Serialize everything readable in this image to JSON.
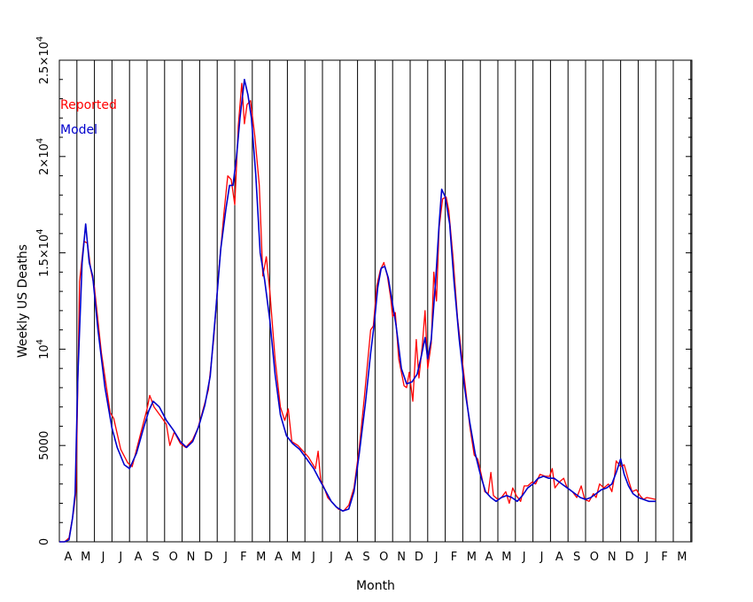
{
  "chart_data": {
    "type": "line",
    "xlabel": "Month",
    "ylabel": "Weekly US Deaths",
    "ylim": [
      0,
      25000
    ],
    "yticks": [
      {
        "value": 0,
        "label": "0"
      },
      {
        "value": 5000,
        "label": "5000"
      },
      {
        "value": 10000,
        "label": "10",
        "sup": "4"
      },
      {
        "value": 15000,
        "label": "1.5×10",
        "sup": "4"
      },
      {
        "value": 20000,
        "label": "2×10",
        "sup": "4"
      },
      {
        "value": 25000,
        "label": "2.5×10",
        "sup": "4"
      }
    ],
    "month_labels": [
      "A",
      "M",
      "J",
      "J",
      "A",
      "S",
      "O",
      "N",
      "D",
      "J",
      "F",
      "M",
      "A",
      "M",
      "J",
      "J",
      "A",
      "S",
      "O",
      "N",
      "D",
      "J",
      "F",
      "M",
      "A",
      "M",
      "J",
      "J",
      "A",
      "S",
      "O",
      "N",
      "D",
      "J",
      "F",
      "M"
    ],
    "xlim": [
      0,
      36
    ],
    "grid": "vertical lines at month boundaries",
    "legend_position": "top-left",
    "series": [
      {
        "name": "Reported",
        "color": "#ff0000",
        "points": [
          [
            0,
            0
          ],
          [
            0.3,
            0
          ],
          [
            0.55,
            200
          ],
          [
            0.8,
            1500
          ],
          [
            0.95,
            2600
          ],
          [
            1.15,
            13500
          ],
          [
            1.4,
            15600
          ],
          [
            1.6,
            15500
          ],
          [
            1.8,
            14100
          ],
          [
            2.0,
            13200
          ],
          [
            2.4,
            9800
          ],
          [
            2.9,
            6700
          ],
          [
            3.1,
            6400
          ],
          [
            3.5,
            4800
          ],
          [
            3.9,
            4100
          ],
          [
            4.15,
            3900
          ],
          [
            4.6,
            5500
          ],
          [
            5.0,
            6900
          ],
          [
            5.15,
            7600
          ],
          [
            5.4,
            7000
          ],
          [
            5.8,
            6500
          ],
          [
            6.1,
            6100
          ],
          [
            6.3,
            5000
          ],
          [
            6.55,
            5700
          ],
          [
            6.9,
            5100
          ],
          [
            7.2,
            4900
          ],
          [
            7.6,
            5300
          ],
          [
            7.9,
            5900
          ],
          [
            8.2,
            6900
          ],
          [
            8.5,
            7900
          ],
          [
            8.8,
            10500
          ],
          [
            9.1,
            14200
          ],
          [
            9.4,
            17200
          ],
          [
            9.6,
            19000
          ],
          [
            9.8,
            18800
          ],
          [
            10.0,
            17500
          ],
          [
            10.2,
            21600
          ],
          [
            10.4,
            23800
          ],
          [
            10.55,
            21700
          ],
          [
            10.7,
            22700
          ],
          [
            10.9,
            22900
          ],
          [
            11.15,
            21000
          ],
          [
            11.4,
            18500
          ],
          [
            11.6,
            13800
          ],
          [
            11.8,
            14800
          ],
          [
            12.0,
            13000
          ],
          [
            12.3,
            9500
          ],
          [
            12.6,
            7000
          ],
          [
            12.85,
            6300
          ],
          [
            13.05,
            6900
          ],
          [
            13.25,
            5200
          ],
          [
            13.6,
            5000
          ],
          [
            13.9,
            4700
          ],
          [
            14.2,
            4400
          ],
          [
            14.4,
            4100
          ],
          [
            14.6,
            3800
          ],
          [
            14.75,
            4700
          ],
          [
            14.9,
            3200
          ],
          [
            15.1,
            2800
          ],
          [
            15.3,
            2300
          ],
          [
            15.6,
            2000
          ],
          [
            15.9,
            1700
          ],
          [
            16.2,
            1600
          ],
          [
            16.5,
            1900
          ],
          [
            16.8,
            2800
          ],
          [
            17.1,
            4900
          ],
          [
            17.4,
            7600
          ],
          [
            17.75,
            11000
          ],
          [
            17.9,
            11200
          ],
          [
            18.1,
            13300
          ],
          [
            18.3,
            14100
          ],
          [
            18.5,
            14500
          ],
          [
            18.7,
            13800
          ],
          [
            18.9,
            12600
          ],
          [
            19.0,
            11700
          ],
          [
            19.15,
            11900
          ],
          [
            19.35,
            9500
          ],
          [
            19.5,
            8800
          ],
          [
            19.65,
            8100
          ],
          [
            19.8,
            8000
          ],
          [
            19.95,
            8800
          ],
          [
            20.15,
            7300
          ],
          [
            20.35,
            10500
          ],
          [
            20.5,
            8500
          ],
          [
            20.7,
            10300
          ],
          [
            20.85,
            12000
          ],
          [
            21.0,
            9000
          ],
          [
            21.2,
            10300
          ],
          [
            21.35,
            14000
          ],
          [
            21.5,
            12500
          ],
          [
            21.65,
            16300
          ],
          [
            21.85,
            17800
          ],
          [
            22.05,
            17900
          ],
          [
            22.2,
            17200
          ],
          [
            22.45,
            14700
          ],
          [
            22.7,
            11600
          ],
          [
            22.9,
            10000
          ],
          [
            23.15,
            8000
          ],
          [
            23.4,
            6000
          ],
          [
            23.65,
            4500
          ],
          [
            23.85,
            4300
          ],
          [
            24.05,
            3500
          ],
          [
            24.25,
            2600
          ],
          [
            24.45,
            2500
          ],
          [
            24.6,
            3600
          ],
          [
            24.75,
            2400
          ],
          [
            25.0,
            2200
          ],
          [
            25.2,
            2300
          ],
          [
            25.45,
            2600
          ],
          [
            25.65,
            2000
          ],
          [
            25.85,
            2800
          ],
          [
            26.05,
            2400
          ],
          [
            26.3,
            2100
          ],
          [
            26.5,
            2900
          ],
          [
            26.7,
            2900
          ],
          [
            26.95,
            3100
          ],
          [
            27.15,
            3000
          ],
          [
            27.4,
            3500
          ],
          [
            27.7,
            3400
          ],
          [
            27.95,
            3400
          ],
          [
            28.1,
            3800
          ],
          [
            28.25,
            2800
          ],
          [
            28.5,
            3100
          ],
          [
            28.75,
            3300
          ],
          [
            28.95,
            2800
          ],
          [
            29.25,
            2600
          ],
          [
            29.5,
            2300
          ],
          [
            29.75,
            2900
          ],
          [
            29.95,
            2200
          ],
          [
            30.2,
            2100
          ],
          [
            30.45,
            2500
          ],
          [
            30.6,
            2300
          ],
          [
            30.8,
            3000
          ],
          [
            31.05,
            2800
          ],
          [
            31.3,
            3000
          ],
          [
            31.5,
            2600
          ],
          [
            31.65,
            3400
          ],
          [
            31.75,
            4200
          ],
          [
            32.0,
            3900
          ],
          [
            32.2,
            4000
          ],
          [
            32.45,
            3200
          ],
          [
            32.65,
            2600
          ],
          [
            32.9,
            2700
          ],
          [
            33.1,
            2400
          ],
          [
            33.3,
            2200
          ],
          [
            33.5,
            2300
          ],
          [
            34.0,
            2200
          ]
        ]
      },
      {
        "name": "Model",
        "color": "#0000cc",
        "points": [
          [
            0,
            0
          ],
          [
            0.3,
            0
          ],
          [
            0.55,
            100
          ],
          [
            0.75,
            1200
          ],
          [
            0.9,
            2500
          ],
          [
            1.05,
            8500
          ],
          [
            1.3,
            14500
          ],
          [
            1.5,
            16500
          ],
          [
            1.7,
            14500
          ],
          [
            1.9,
            13800
          ],
          [
            2.2,
            11000
          ],
          [
            2.6,
            8000
          ],
          [
            3.0,
            5900
          ],
          [
            3.3,
            4900
          ],
          [
            3.7,
            4000
          ],
          [
            4.0,
            3800
          ],
          [
            4.4,
            4600
          ],
          [
            4.8,
            5900
          ],
          [
            5.1,
            6800
          ],
          [
            5.35,
            7300
          ],
          [
            5.7,
            7000
          ],
          [
            6.1,
            6300
          ],
          [
            6.5,
            5800
          ],
          [
            6.9,
            5200
          ],
          [
            7.25,
            4900
          ],
          [
            7.6,
            5200
          ],
          [
            7.95,
            6000
          ],
          [
            8.3,
            7100
          ],
          [
            8.6,
            8600
          ],
          [
            8.9,
            11800
          ],
          [
            9.2,
            15200
          ],
          [
            9.5,
            17300
          ],
          [
            9.7,
            18500
          ],
          [
            9.9,
            18500
          ],
          [
            10.1,
            20000
          ],
          [
            10.3,
            22000
          ],
          [
            10.55,
            24000
          ],
          [
            10.75,
            23200
          ],
          [
            10.95,
            22000
          ],
          [
            11.2,
            19000
          ],
          [
            11.45,
            15000
          ],
          [
            11.7,
            13600
          ],
          [
            12.0,
            11500
          ],
          [
            12.3,
            8700
          ],
          [
            12.6,
            6600
          ],
          [
            12.95,
            5500
          ],
          [
            13.3,
            5100
          ],
          [
            13.7,
            4800
          ],
          [
            14.1,
            4300
          ],
          [
            14.5,
            3800
          ],
          [
            14.85,
            3200
          ],
          [
            15.2,
            2600
          ],
          [
            15.5,
            2100
          ],
          [
            15.8,
            1800
          ],
          [
            16.15,
            1600
          ],
          [
            16.5,
            1700
          ],
          [
            16.8,
            2600
          ],
          [
            17.1,
            4600
          ],
          [
            17.45,
            7200
          ],
          [
            17.75,
            9800
          ],
          [
            17.95,
            11300
          ],
          [
            18.15,
            13200
          ],
          [
            18.35,
            14200
          ],
          [
            18.55,
            14300
          ],
          [
            18.75,
            13700
          ],
          [
            18.95,
            12600
          ],
          [
            19.2,
            11200
          ],
          [
            19.5,
            9000
          ],
          [
            19.8,
            8200
          ],
          [
            20.1,
            8300
          ],
          [
            20.4,
            8700
          ],
          [
            20.65,
            9700
          ],
          [
            20.85,
            10600
          ],
          [
            21.0,
            9500
          ],
          [
            21.2,
            10500
          ],
          [
            21.45,
            13500
          ],
          [
            21.65,
            16500
          ],
          [
            21.8,
            18300
          ],
          [
            22.0,
            17900
          ],
          [
            22.25,
            16500
          ],
          [
            22.5,
            13500
          ],
          [
            22.8,
            10500
          ],
          [
            23.1,
            8000
          ],
          [
            23.4,
            6200
          ],
          [
            23.7,
            4600
          ],
          [
            24.0,
            3500
          ],
          [
            24.3,
            2600
          ],
          [
            24.6,
            2300
          ],
          [
            24.9,
            2100
          ],
          [
            25.2,
            2300
          ],
          [
            25.5,
            2400
          ],
          [
            25.8,
            2300
          ],
          [
            26.1,
            2100
          ],
          [
            26.4,
            2400
          ],
          [
            26.7,
            2800
          ],
          [
            27.0,
            3000
          ],
          [
            27.3,
            3300
          ],
          [
            27.6,
            3400
          ],
          [
            27.9,
            3300
          ],
          [
            28.2,
            3300
          ],
          [
            28.5,
            3100
          ],
          [
            28.8,
            2900
          ],
          [
            29.1,
            2700
          ],
          [
            29.4,
            2500
          ],
          [
            29.7,
            2300
          ],
          [
            30.0,
            2200
          ],
          [
            30.3,
            2300
          ],
          [
            30.6,
            2500
          ],
          [
            30.9,
            2700
          ],
          [
            31.2,
            2800
          ],
          [
            31.5,
            3000
          ],
          [
            31.75,
            3600
          ],
          [
            32.0,
            4300
          ],
          [
            32.2,
            3500
          ],
          [
            32.45,
            2900
          ],
          [
            32.7,
            2500
          ],
          [
            33.0,
            2300
          ],
          [
            33.3,
            2200
          ],
          [
            33.6,
            2100
          ],
          [
            34.0,
            2100
          ]
        ]
      }
    ]
  }
}
